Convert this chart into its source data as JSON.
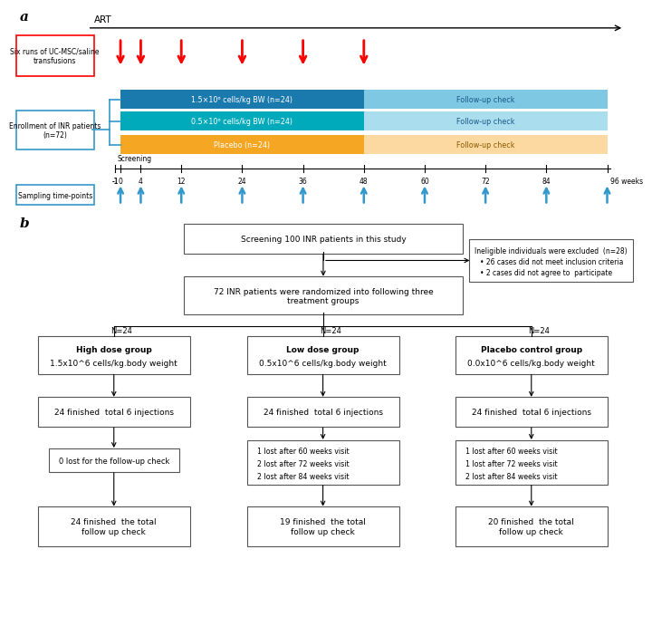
{
  "panel_a": {
    "art_label": "ART",
    "red_arrow_weeks": [
      0,
      4,
      12,
      24,
      36,
      48
    ],
    "blue_arrow_weeks": [
      0,
      4,
      12,
      24,
      36,
      48,
      60,
      72,
      84,
      96
    ],
    "timeline_ticks": [
      -1,
      0,
      4,
      12,
      24,
      36,
      48,
      60,
      72,
      84,
      96
    ],
    "bar1_color_left": "#1a7aad",
    "bar1_color_right": "#7ec8e3",
    "bar2_color_left": "#00aabb",
    "bar2_color_right": "#aaddee",
    "bar3_color_left": "#f5a623",
    "bar3_color_right": "#fcd9a0",
    "bar1_label": "1.5×10⁶ cells/kg BW (n=24)",
    "bar2_label": "0.5×10⁶ cells/kg BW (n=24)",
    "bar3_label": "Placebo (n=24)",
    "followup_label": "Follow-up check",
    "enroll_label": "Enrollment of INR patients\n(n=72)",
    "six_runs_label": "Six runs of UC-MSC/saline\ntransfusions",
    "sampling_label": "Sampling time-points",
    "screening_label": "Screening",
    "weeks_label": "96 weeks"
  },
  "panel_b": {
    "box_color": "#ffffff",
    "border_color": "#000000"
  }
}
